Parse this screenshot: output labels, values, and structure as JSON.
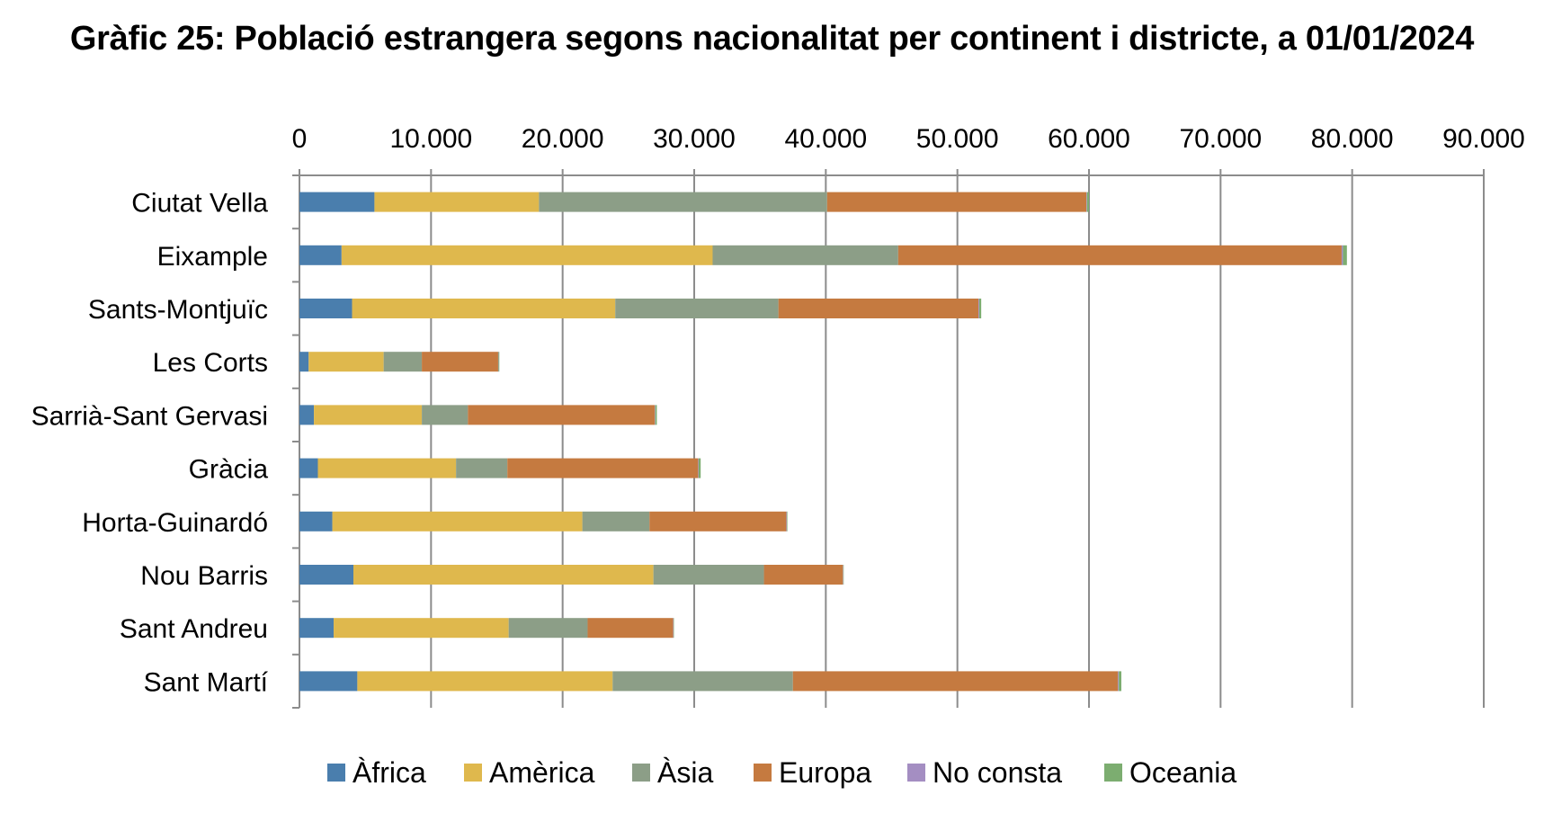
{
  "chart_data": {
    "type": "bar",
    "orientation": "horizontal",
    "stacked": true,
    "title": "Gràfic 25: Població estrangera segons nacionalitat per continent i districte, a 01/01/2024",
    "xlabel": "",
    "ylabel": "",
    "xlim": [
      0,
      90000
    ],
    "x_ticks": [
      0,
      10000,
      20000,
      30000,
      40000,
      50000,
      60000,
      70000,
      80000,
      90000
    ],
    "x_tick_labels": [
      "0",
      "10.000",
      "20.000",
      "30.000",
      "40.000",
      "50.000",
      "60.000",
      "70.000",
      "80.000",
      "90.000"
    ],
    "x_axis_position": "top",
    "grid": "vertical",
    "legend_position": "bottom",
    "categories": [
      "Ciutat Vella",
      "Eixample",
      "Sants-Montjuïc",
      "Les Corts",
      "Sarrià-Sant Gervasi",
      "Gràcia",
      "Horta-Guinardó",
      "Nou Barris",
      "Sant Andreu",
      "Sant Martí"
    ],
    "series": [
      {
        "name": "Àfrica",
        "color": "#4a7ead",
        "values": [
          5700,
          3200,
          4000,
          700,
          1100,
          1400,
          2500,
          4100,
          2600,
          4400
        ]
      },
      {
        "name": "Amèrica",
        "color": "#dfb84d",
        "values": [
          12500,
          28200,
          20000,
          5700,
          8200,
          10500,
          19000,
          22800,
          13300,
          19400
        ]
      },
      {
        "name": "Àsia",
        "color": "#8c9e87",
        "values": [
          21900,
          14100,
          12400,
          2900,
          3500,
          3900,
          5100,
          8400,
          6000,
          13700
        ]
      },
      {
        "name": "Europa",
        "color": "#c57a40",
        "values": [
          19700,
          33700,
          15200,
          5800,
          14200,
          14500,
          10400,
          6000,
          6500,
          24700
        ]
      },
      {
        "name": "No consta",
        "color": "#a48ec2",
        "values": [
          50,
          100,
          60,
          30,
          40,
          40,
          40,
          30,
          30,
          60
        ]
      },
      {
        "name": "Oceania",
        "color": "#7cad70",
        "values": [
          150,
          300,
          150,
          60,
          120,
          150,
          40,
          30,
          30,
          200
        ]
      }
    ]
  }
}
